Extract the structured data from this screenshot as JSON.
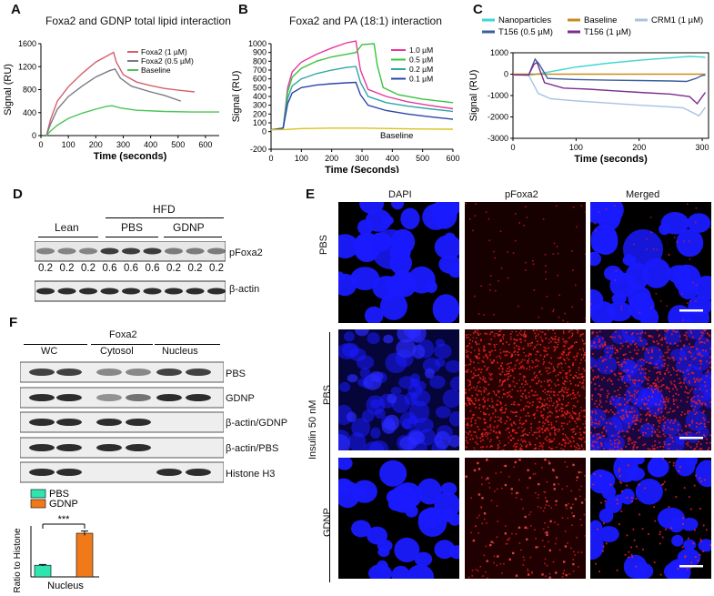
{
  "panels": {
    "A": {
      "letter": "A",
      "title": "Foxa2  and  GDNP total lipid interaction"
    },
    "B": {
      "letter": "B",
      "title": "Foxa2  and PA (18:1) interaction"
    },
    "C": {
      "letter": "C"
    },
    "D": {
      "letter": "D"
    },
    "E": {
      "letter": "E"
    },
    "F": {
      "letter": "F"
    }
  },
  "chart_data": [
    {
      "id": "A",
      "type": "line",
      "title": "Foxa2  and  GDNP total lipid interaction",
      "xlabel": "Time (seconds)",
      "ylabel": "Signal (RU)",
      "xlim": [
        0,
        650
      ],
      "ylim": [
        0,
        1600
      ],
      "xticks": [
        0,
        100,
        200,
        300,
        400,
        500,
        600
      ],
      "yticks": [
        0,
        400,
        800,
        1200,
        1600
      ],
      "series": [
        {
          "name": "Foxa2 (1 µM)",
          "color": "#d4606e",
          "points": [
            [
              20,
              0
            ],
            [
              35,
              280
            ],
            [
              60,
              600
            ],
            [
              100,
              850
            ],
            [
              150,
              1080
            ],
            [
              200,
              1280
            ],
            [
              250,
              1410
            ],
            [
              265,
              1450
            ],
            [
              275,
              1280
            ],
            [
              300,
              1060
            ],
            [
              350,
              930
            ],
            [
              400,
              870
            ],
            [
              450,
              820
            ],
            [
              500,
              790
            ],
            [
              560,
              760
            ]
          ]
        },
        {
          "name": "Foxa2 (0.5 µM)",
          "color": "#7a7a86",
          "points": [
            [
              20,
              0
            ],
            [
              35,
              200
            ],
            [
              60,
              460
            ],
            [
              100,
              680
            ],
            [
              150,
              860
            ],
            [
              200,
              1020
            ],
            [
              250,
              1130
            ],
            [
              270,
              1160
            ],
            [
              290,
              1000
            ],
            [
              330,
              860
            ],
            [
              400,
              760
            ],
            [
              450,
              700
            ],
            [
              510,
              600
            ]
          ]
        },
        {
          "name": "Baseline",
          "color": "#4cc455",
          "points": [
            [
              20,
              0
            ],
            [
              35,
              80
            ],
            [
              60,
              180
            ],
            [
              100,
              300
            ],
            [
              150,
              390
            ],
            [
              200,
              460
            ],
            [
              240,
              510
            ],
            [
              260,
              520
            ],
            [
              290,
              480
            ],
            [
              350,
              440
            ],
            [
              450,
              420
            ],
            [
              550,
              410
            ],
            [
              650,
              410
            ]
          ]
        }
      ]
    },
    {
      "id": "B",
      "type": "line",
      "title": "Foxa2  and PA (18:1) interaction",
      "xlabel": "Time (Seconds)",
      "ylabel": "Signal (RU)",
      "xlim": [
        0,
        600
      ],
      "ylim": [
        -200,
        1000
      ],
      "xticks": [
        0,
        100,
        200,
        300,
        400,
        500,
        600
      ],
      "yticks": [
        -200,
        0,
        100,
        200,
        300,
        400,
        500,
        600,
        700,
        800,
        900,
        1000
      ],
      "annotation": "Baseline",
      "series": [
        {
          "name": "1.0 µM",
          "color": "#e8389e",
          "points": [
            [
              0,
              20
            ],
            [
              40,
              40
            ],
            [
              55,
              500
            ],
            [
              70,
              680
            ],
            [
              100,
              790
            ],
            [
              150,
              880
            ],
            [
              200,
              950
            ],
            [
              250,
              1010
            ],
            [
              280,
              1030
            ],
            [
              295,
              700
            ],
            [
              320,
              480
            ],
            [
              380,
              400
            ],
            [
              450,
              340
            ],
            [
              520,
              300
            ],
            [
              600,
              260
            ]
          ]
        },
        {
          "name": "0.5 µM",
          "color": "#38c43c",
          "points": [
            [
              0,
              20
            ],
            [
              40,
              40
            ],
            [
              55,
              450
            ],
            [
              70,
              620
            ],
            [
              100,
              720
            ],
            [
              150,
              800
            ],
            [
              200,
              850
            ],
            [
              250,
              880
            ],
            [
              280,
              900
            ],
            [
              300,
              990
            ],
            [
              340,
              1000
            ],
            [
              350,
              760
            ],
            [
              370,
              500
            ],
            [
              420,
              420
            ],
            [
              500,
              370
            ],
            [
              600,
              330
            ]
          ]
        },
        {
          "name": "0.2 µM",
          "color": "#2ea6a6",
          "points": [
            [
              0,
              20
            ],
            [
              40,
              40
            ],
            [
              55,
              380
            ],
            [
              70,
              520
            ],
            [
              100,
              600
            ],
            [
              150,
              660
            ],
            [
              200,
              700
            ],
            [
              250,
              730
            ],
            [
              280,
              740
            ],
            [
              295,
              560
            ],
            [
              320,
              400
            ],
            [
              380,
              330
            ],
            [
              450,
              290
            ],
            [
              520,
              260
            ],
            [
              600,
              230
            ]
          ]
        },
        {
          "name": "0.1 µM",
          "color": "#2b45a8",
          "points": [
            [
              0,
              20
            ],
            [
              40,
              40
            ],
            [
              55,
              320
            ],
            [
              70,
              440
            ],
            [
              100,
              500
            ],
            [
              150,
              530
            ],
            [
              200,
              545
            ],
            [
              250,
              555
            ],
            [
              280,
              560
            ],
            [
              295,
              420
            ],
            [
              320,
              300
            ],
            [
              380,
              240
            ],
            [
              450,
              200
            ],
            [
              520,
              170
            ],
            [
              600,
              140
            ]
          ]
        },
        {
          "name": "Baseline",
          "color": "#d8c21e",
          "points": [
            [
              0,
              20
            ],
            [
              50,
              25
            ],
            [
              100,
              35
            ],
            [
              200,
              40
            ],
            [
              300,
              40
            ],
            [
              400,
              35
            ],
            [
              500,
              30
            ],
            [
              600,
              28
            ]
          ]
        }
      ]
    },
    {
      "id": "C",
      "type": "line",
      "title": "",
      "xlabel": "Time (seconds)",
      "ylabel": "Signal (RU)",
      "xlim": [
        0,
        310
      ],
      "ylim": [
        -3000,
        1000
      ],
      "xticks": [
        0,
        100,
        200,
        300
      ],
      "yticks": [
        -3000,
        -2000,
        -1000,
        0,
        1000
      ],
      "series": [
        {
          "name": "Nanoparticles",
          "color": "#3fd6d6",
          "points": [
            [
              0,
              -30
            ],
            [
              30,
              -40
            ],
            [
              60,
              120
            ],
            [
              100,
              330
            ],
            [
              150,
              510
            ],
            [
              200,
              650
            ],
            [
              250,
              760
            ],
            [
              280,
              830
            ],
            [
              300,
              800
            ],
            [
              305,
              780
            ]
          ]
        },
        {
          "name": "Baseline",
          "color": "#c98a1e",
          "points": [
            [
              0,
              0
            ],
            [
              305,
              0
            ]
          ]
        },
        {
          "name": "CRM1 (1 µM)",
          "color": "#a9c3e0",
          "points": [
            [
              0,
              -40
            ],
            [
              25,
              -60
            ],
            [
              33,
              -500
            ],
            [
              40,
              -900
            ],
            [
              60,
              -1150
            ],
            [
              100,
              -1250
            ],
            [
              150,
              -1350
            ],
            [
              200,
              -1450
            ],
            [
              250,
              -1530
            ],
            [
              270,
              -1580
            ],
            [
              285,
              -1800
            ],
            [
              295,
              -1950
            ],
            [
              300,
              -1750
            ],
            [
              305,
              -1550
            ]
          ]
        },
        {
          "name": "T156 (0.5 µM)",
          "color": "#3a5f9e",
          "points": [
            [
              0,
              -30
            ],
            [
              25,
              -40
            ],
            [
              35,
              700
            ],
            [
              42,
              450
            ],
            [
              55,
              -200
            ],
            [
              100,
              -250
            ],
            [
              150,
              -280
            ],
            [
              200,
              -300
            ],
            [
              250,
              -320
            ],
            [
              275,
              -340
            ],
            [
              290,
              -200
            ],
            [
              300,
              -60
            ],
            [
              305,
              -40
            ]
          ]
        },
        {
          "name": "T156 (1 µM)",
          "color": "#7b2e8e",
          "points": [
            [
              0,
              -30
            ],
            [
              25,
              -40
            ],
            [
              33,
              450
            ],
            [
              38,
              550
            ],
            [
              50,
              -400
            ],
            [
              80,
              -650
            ],
            [
              120,
              -700
            ],
            [
              160,
              -780
            ],
            [
              200,
              -850
            ],
            [
              250,
              -930
            ],
            [
              280,
              -1050
            ],
            [
              292,
              -1380
            ],
            [
              300,
              -1050
            ],
            [
              305,
              -850
            ]
          ]
        }
      ]
    },
    {
      "id": "F",
      "type": "bar",
      "xlabel": "Nucleus",
      "ylabel": "Ratio to Histone",
      "ylim": [
        0,
        3.5
      ],
      "categories": [
        "PBS",
        "GDNP"
      ],
      "values": [
        0.8,
        3.0
      ],
      "errors": [
        0.05,
        0.15
      ],
      "colors": [
        "#2ee5b0",
        "#f07a1a"
      ],
      "legend": [
        "PBS",
        "GDNP"
      ],
      "significance": "***"
    }
  ],
  "panel_d": {
    "group_top": "HFD",
    "groups": [
      "Lean",
      "PBS",
      "GDNP"
    ],
    "blot_labels": [
      "pFoxa2",
      "β-actin"
    ],
    "quant": [
      "0.2",
      "0.2",
      "0.2",
      "0.6",
      "0.6",
      "0.6",
      "0.2",
      "0.2",
      "0.2"
    ]
  },
  "panel_e": {
    "col_headers": [
      "DAPI",
      "pFoxa2",
      "Merged"
    ],
    "row_labels": [
      "PBS",
      "PBS",
      "GDNP"
    ],
    "side_label": "Insulin  50 nM"
  },
  "panel_f": {
    "title": "Foxa2",
    "fractions": [
      "WC",
      "Cytosol",
      "Nucleus"
    ],
    "blot_labels": [
      "PBS",
      "GDNP",
      "β-actin/GDNP",
      "β-actin/PBS",
      "Histone H3"
    ]
  },
  "colors": {
    "dapi": "#1a1aff",
    "pfoxa2": "#ff2020",
    "blot": "#2a2a2a"
  }
}
